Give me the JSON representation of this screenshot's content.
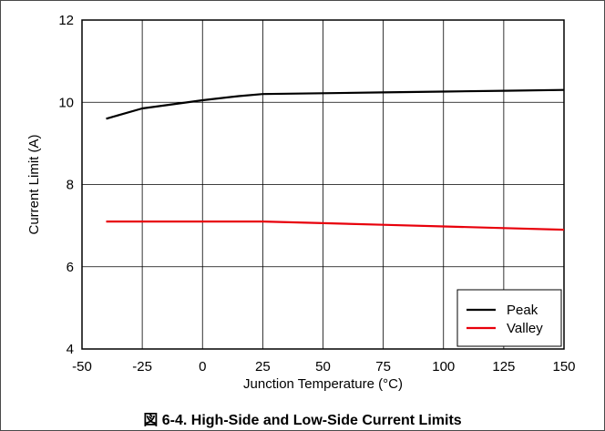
{
  "caption": "図 6-4. High-Side and Low-Side Current Limits",
  "chart_data": {
    "type": "line",
    "xlabel": "Junction Temperature (°C)",
    "ylabel": "Current Limit (A)",
    "xlim": [
      -50,
      150
    ],
    "ylim": [
      4,
      12
    ],
    "x_ticks": [
      -50,
      -25,
      0,
      25,
      50,
      75,
      100,
      125,
      150
    ],
    "y_ticks": [
      4,
      6,
      8,
      10,
      12
    ],
    "grid": true,
    "legend_position": "bottom-right",
    "series": [
      {
        "name": "Peak",
        "color": "#000000",
        "x": [
          -40,
          -25,
          -10,
          0,
          15,
          25,
          50,
          75,
          100,
          125,
          150
        ],
        "y": [
          9.6,
          9.85,
          9.97,
          10.05,
          10.15,
          10.2,
          10.22,
          10.24,
          10.26,
          10.28,
          10.3
        ]
      },
      {
        "name": "Valley",
        "color": "#e8000b",
        "x": [
          -40,
          -25,
          0,
          25,
          50,
          75,
          100,
          125,
          150
        ],
        "y": [
          7.1,
          7.1,
          7.1,
          7.1,
          7.06,
          7.02,
          6.98,
          6.94,
          6.9
        ]
      }
    ]
  }
}
